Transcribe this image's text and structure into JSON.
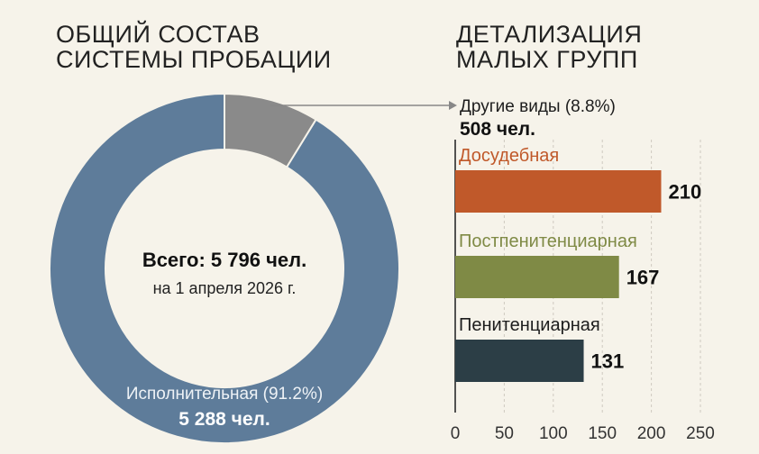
{
  "left_title": "ОБЩИЙ СОСТАВ СИСТЕМЫ ПРОБАЦИИ",
  "right_title": "ДЕТАЛИЗАЦИЯ МАЛЫХ ГРУПП",
  "colors": {
    "background": "#f6f3ea",
    "main_slice": "#5e7c9a",
    "other_slice": "#8a8a8a",
    "pretrial": "#c0592a",
    "postpenitentiary": "#7f8a45",
    "penitentiary": "#2c3e46",
    "pretrial_label": "#c0592a",
    "postpenitentiary_label": "#7f8a45"
  },
  "chart_data": [
    {
      "type": "pie",
      "donut": true,
      "center_text": {
        "total": "Всего: 5 796 чел.",
        "date": "на 1 апреля 2026 г."
      },
      "slices": [
        {
          "name": "Исполнительная (91.2%)",
          "count_label": "5 288 чел.",
          "value": 5288,
          "percent": 91.2
        },
        {
          "name": "Другие виды (8.8%)",
          "count_label": "508 чел.",
          "value": 508,
          "percent": 8.8
        }
      ]
    },
    {
      "type": "bar",
      "orientation": "horizontal",
      "categories": [
        "Досудебная",
        "Постпенитенциарная",
        "Пенитенциарная"
      ],
      "values": [
        210,
        167,
        131
      ],
      "xlim": [
        0,
        250
      ],
      "xticks": [
        0,
        50,
        100,
        150,
        200,
        250
      ],
      "grid": true
    }
  ]
}
